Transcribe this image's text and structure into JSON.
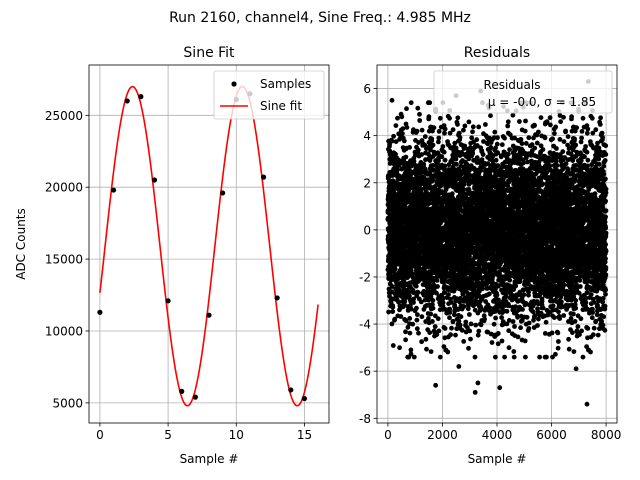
{
  "suptitle": "Run 2160, channel4, Sine Freq.: 4.985 MHz",
  "colors": {
    "sample_marker": "#000000",
    "fit_line": "#ff0000",
    "residual_marker": "#000000",
    "grid": "#b0b0b0",
    "axes": "#000000"
  },
  "chart_data": [
    {
      "type": "scatter",
      "title": "Sine Fit",
      "xlabel": "Sample #",
      "ylabel": "ADC Counts",
      "xlim": [
        -0.8,
        16.8
      ],
      "ylim": [
        3600,
        28500
      ],
      "xticks": [
        0,
        5,
        10,
        15
      ],
      "yticks": [
        5000,
        10000,
        15000,
        20000,
        25000
      ],
      "grid": true,
      "legend": {
        "placement": "top-right",
        "entries": [
          "Samples",
          "Sine fit"
        ]
      },
      "series": [
        {
          "name": "Samples",
          "style": "markers",
          "x": [
            0,
            1,
            2,
            3,
            4,
            5,
            6,
            7,
            8,
            9,
            10,
            11,
            12,
            13,
            14,
            15
          ],
          "y": [
            11300,
            19800,
            26000,
            26300,
            20500,
            12100,
            5800,
            5400,
            11100,
            19600,
            26100,
            26500,
            20700,
            12300,
            5900,
            5300
          ]
        },
        {
          "name": "Sine fit",
          "style": "line",
          "function": "sine",
          "x_range": [
            0,
            16
          ],
          "offset": 15900,
          "amplitude": 11100,
          "period": 8.05,
          "phase_x0": 0.38
        }
      ]
    },
    {
      "type": "scatter",
      "title": "Residuals",
      "xlabel": "Sample #",
      "ylabel": "",
      "xlim": [
        -400,
        8400
      ],
      "ylim": [
        -8.2,
        7.0
      ],
      "xticks": [
        0,
        2000,
        4000,
        6000,
        8000
      ],
      "yticks": [
        -8,
        -6,
        -4,
        -2,
        0,
        2,
        4,
        6
      ],
      "grid": true,
      "legend": {
        "placement": "top-right",
        "entries": [
          "Residuals",
          "μ = -0.0, σ = 1.85"
        ]
      },
      "series": [
        {
          "name": "Residuals",
          "style": "markers",
          "x_range": [
            0,
            8000
          ],
          "count": 8000,
          "mean": -0.0,
          "std": 1.85,
          "outliers": [
            {
              "x": 7350,
              "y": 6.3
            },
            {
              "x": 2500,
              "y": 5.7
            },
            {
              "x": 3400,
              "y": 5.9
            },
            {
              "x": 150,
              "y": 5.5
            },
            {
              "x": 1750,
              "y": -6.6
            },
            {
              "x": 3300,
              "y": -6.5
            },
            {
              "x": 2600,
              "y": -5.8
            },
            {
              "x": 3200,
              "y": -6.9
            },
            {
              "x": 4100,
              "y": -6.7
            },
            {
              "x": 7300,
              "y": -7.4
            },
            {
              "x": 6900,
              "y": -5.9
            }
          ]
        }
      ]
    }
  ]
}
